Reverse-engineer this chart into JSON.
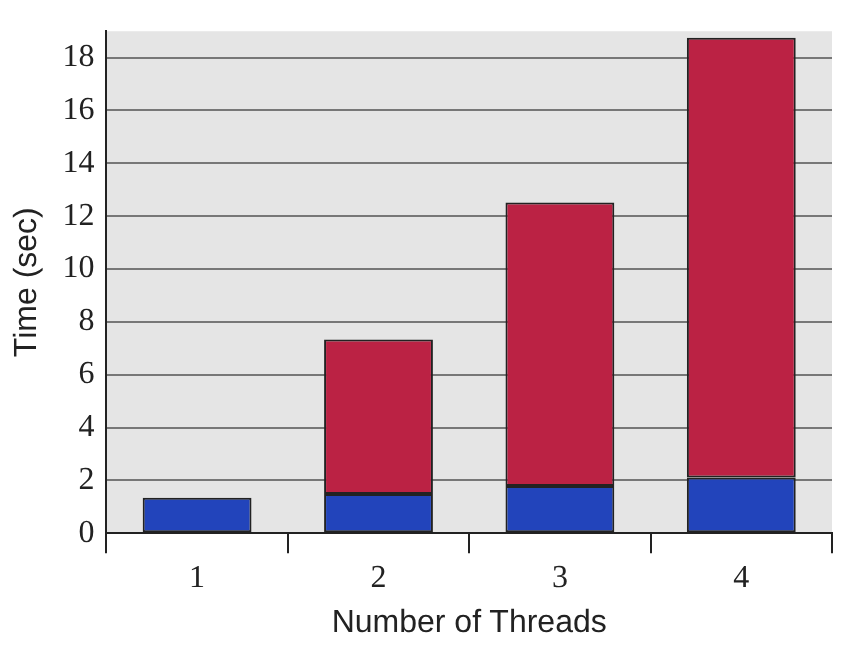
{
  "chart_data": {
    "type": "bar",
    "stacked": true,
    "xlabel": "Number of Threads",
    "ylabel": "Time (sec)",
    "categories": [
      "1",
      "2",
      "3",
      "4"
    ],
    "series": [
      {
        "color": "#2244bb",
        "values": [
          1.34,
          1.48,
          1.79,
          2.11
        ]
      },
      {
        "color": "#bb2244",
        "values": [
          null,
          5.85,
          10.73,
          16.64
        ]
      }
    ],
    "ylim": [
      0,
      19
    ],
    "yticks": [
      0,
      2,
      4,
      6,
      8,
      10,
      12,
      14,
      16,
      18
    ],
    "grid": "y",
    "legend": false
  }
}
